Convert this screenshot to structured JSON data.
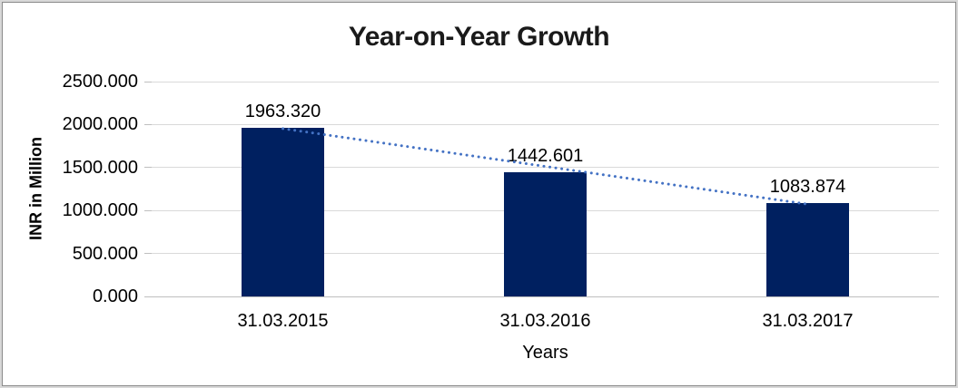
{
  "window": {
    "background": "#ffffff",
    "border_outer_color": "#d8d8d8",
    "border_inner_color": "#8a8a8a"
  },
  "chart_data": {
    "type": "bar",
    "title": "Year-on-Year Growth",
    "categories": [
      "31.03.2015",
      "31.03.2016",
      "31.03.2017"
    ],
    "values": [
      1963.32,
      1442.601,
      1083.874
    ],
    "data_labels": [
      "1963.320",
      "1442.601",
      "1083.874"
    ],
    "xlabel": "Years",
    "ylabel": "INR in Million",
    "ylim": [
      0,
      2500
    ],
    "ytick_step": 500,
    "yticks": [
      {
        "value": 2500,
        "label": "2500.000"
      },
      {
        "value": 2000,
        "label": "2000.000"
      },
      {
        "value": 1500,
        "label": "1500.000"
      },
      {
        "value": 1000,
        "label": "1000.000"
      },
      {
        "value": 500,
        "label": "500.000"
      },
      {
        "value": 0,
        "label": "0.000"
      }
    ],
    "grid": true,
    "legend": "none",
    "colors": {
      "bar": "#002060",
      "trendline": "#4472c4",
      "gridline": "#d9d9d9",
      "axis_line": "#bfbfbf",
      "text": "#000000",
      "title_text": "#1a1a1a"
    },
    "trendline": {
      "type": "linear",
      "style": "dotted"
    }
  }
}
